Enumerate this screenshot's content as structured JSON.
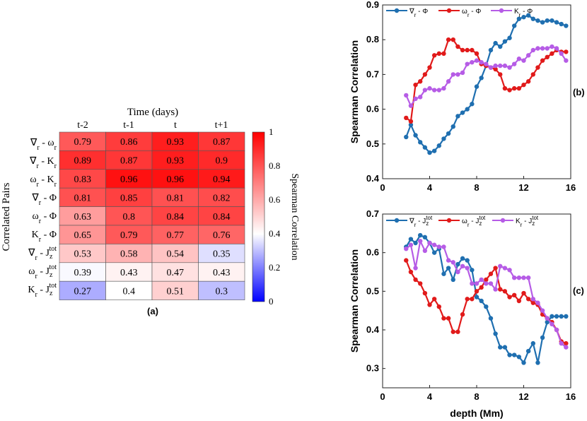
{
  "chart_data": [
    {
      "type": "heatmap",
      "title": "Time (days)",
      "panel_label": "(a)",
      "xlabel": "Time (days)",
      "ylabel": "Correlated Pairs",
      "columns": [
        "t-2",
        "t-1",
        "t",
        "t+1"
      ],
      "rows": [
        {
          "label": "∇r - ωr",
          "values": [
            0.79,
            0.86,
            0.93,
            0.87
          ]
        },
        {
          "label": "∇r - Kr",
          "values": [
            0.89,
            0.87,
            0.93,
            0.9
          ]
        },
        {
          "label": "ωr - Kr",
          "values": [
            0.83,
            0.96,
            0.96,
            0.94
          ]
        },
        {
          "label": "∇r - Φ",
          "values": [
            0.81,
            0.85,
            0.81,
            0.82
          ]
        },
        {
          "label": "ωr - Φ",
          "values": [
            0.63,
            0.8,
            0.84,
            0.84
          ]
        },
        {
          "label": "Kr - Φ",
          "values": [
            0.65,
            0.79,
            0.77,
            0.76
          ]
        },
        {
          "label": "∇r - Jz tot",
          "values": [
            0.53,
            0.58,
            0.54,
            0.35
          ]
        },
        {
          "label": "ωr - Jz tot",
          "values": [
            0.39,
            0.43,
            0.47,
            0.43
          ]
        },
        {
          "label": "Kr - Jz tot",
          "values": [
            0.27,
            0.4,
            0.51,
            0.3
          ]
        }
      ],
      "colorbar": {
        "label": "Spearman Correlation",
        "range": [
          0,
          1
        ],
        "ticks": [
          "0",
          "0.2",
          "0.4",
          "0.6",
          "0.8",
          "1"
        ]
      }
    },
    {
      "type": "line",
      "panel_label": "(b)",
      "ylabel": "Spearman Correlation",
      "xlabel": "",
      "xlim": [
        0,
        16
      ],
      "ylim": [
        0.4,
        0.9
      ],
      "xticks": [
        0,
        4,
        8,
        12,
        16
      ],
      "yticks": [
        0.4,
        0.5,
        0.6,
        0.7,
        0.8,
        0.9
      ],
      "legend": "top",
      "series": [
        {
          "name": "∇r - Φ",
          "color": "#1f6fb0",
          "x": [
            2.0,
            2.4,
            2.8,
            3.2,
            3.6,
            4.0,
            4.4,
            4.8,
            5.2,
            5.6,
            6.0,
            6.4,
            6.8,
            7.2,
            7.6,
            8.0,
            8.4,
            8.8,
            9.2,
            9.6,
            10.0,
            10.4,
            10.8,
            11.2,
            11.6,
            12.0,
            12.4,
            12.8,
            13.2,
            13.6,
            14.0,
            14.4,
            14.8,
            15.2,
            15.6
          ],
          "y": [
            0.52,
            0.555,
            0.525,
            0.505,
            0.49,
            0.475,
            0.48,
            0.495,
            0.515,
            0.53,
            0.55,
            0.58,
            0.59,
            0.6,
            0.615,
            0.665,
            0.69,
            0.725,
            0.77,
            0.79,
            0.78,
            0.795,
            0.805,
            0.84,
            0.86,
            0.865,
            0.87,
            0.86,
            0.855,
            0.85,
            0.855,
            0.855,
            0.85,
            0.845,
            0.84
          ]
        },
        {
          "name": "ωr - Φ",
          "color": "#e11a1a",
          "x": [
            2.0,
            2.4,
            2.8,
            3.2,
            3.6,
            4.0,
            4.4,
            4.8,
            5.2,
            5.6,
            6.0,
            6.4,
            6.8,
            7.2,
            7.6,
            8.0,
            8.4,
            8.8,
            9.2,
            9.6,
            10.0,
            10.4,
            10.8,
            11.2,
            11.6,
            12.0,
            12.4,
            12.8,
            13.2,
            13.6,
            14.0,
            14.4,
            14.8,
            15.2,
            15.6
          ],
          "y": [
            0.575,
            0.565,
            0.67,
            0.68,
            0.7,
            0.72,
            0.755,
            0.76,
            0.76,
            0.8,
            0.8,
            0.78,
            0.77,
            0.77,
            0.77,
            0.76,
            0.73,
            0.725,
            0.72,
            0.715,
            0.7,
            0.66,
            0.655,
            0.66,
            0.66,
            0.67,
            0.68,
            0.7,
            0.72,
            0.74,
            0.75,
            0.76,
            0.77,
            0.765,
            0.765
          ]
        },
        {
          "name": "Kr - Φ",
          "color": "#b65ce6",
          "x": [
            2.0,
            2.4,
            2.8,
            3.2,
            3.6,
            4.0,
            4.4,
            4.8,
            5.2,
            5.6,
            6.0,
            6.4,
            6.8,
            7.2,
            7.6,
            8.0,
            8.4,
            8.8,
            9.2,
            9.6,
            10.0,
            10.4,
            10.8,
            11.2,
            11.6,
            12.0,
            12.4,
            12.8,
            13.2,
            13.6,
            14.0,
            14.4,
            14.8,
            15.2,
            15.6
          ],
          "y": [
            0.64,
            0.61,
            0.63,
            0.635,
            0.655,
            0.66,
            0.655,
            0.655,
            0.66,
            0.68,
            0.7,
            0.7,
            0.705,
            0.73,
            0.735,
            0.74,
            0.735,
            0.73,
            0.72,
            0.725,
            0.725,
            0.725,
            0.72,
            0.73,
            0.745,
            0.74,
            0.755,
            0.77,
            0.775,
            0.775,
            0.775,
            0.78,
            0.775,
            0.76,
            0.74
          ]
        }
      ]
    },
    {
      "type": "line",
      "panel_label": "(c)",
      "ylabel": "Spearman Correlation",
      "xlabel": "depth (Mm)",
      "xlim": [
        0,
        16
      ],
      "ylim": [
        0.25,
        0.7
      ],
      "xticks": [
        0,
        4,
        8,
        12,
        16
      ],
      "yticks": [
        0.3,
        0.4,
        0.5,
        0.6,
        0.7
      ],
      "legend": "top",
      "series": [
        {
          "name": "∇r - Jz tot",
          "color": "#1f6fb0",
          "x": [
            2.0,
            2.4,
            2.8,
            3.2,
            3.6,
            4.0,
            4.4,
            4.8,
            5.2,
            5.6,
            6.0,
            6.4,
            6.8,
            7.2,
            7.6,
            8.0,
            8.4,
            8.8,
            9.2,
            9.6,
            10.0,
            10.4,
            10.8,
            11.2,
            11.6,
            12.0,
            12.4,
            12.8,
            13.2,
            13.6,
            14.0,
            14.4,
            14.8,
            15.2,
            15.6
          ],
          "y": [
            0.615,
            0.635,
            0.625,
            0.645,
            0.64,
            0.625,
            0.6,
            0.61,
            0.545,
            0.56,
            0.53,
            0.57,
            0.585,
            0.58,
            0.555,
            0.485,
            0.475,
            0.46,
            0.43,
            0.39,
            0.355,
            0.355,
            0.335,
            0.335,
            0.33,
            0.315,
            0.345,
            0.365,
            0.315,
            0.38,
            0.42,
            0.435,
            0.435,
            0.435,
            0.435
          ]
        },
        {
          "name": "ωr - Jz tot",
          "color": "#e11a1a",
          "x": [
            2.0,
            2.4,
            2.8,
            3.2,
            3.6,
            4.0,
            4.4,
            4.8,
            5.2,
            5.6,
            6.0,
            6.4,
            6.8,
            7.2,
            7.6,
            8.0,
            8.4,
            8.8,
            9.2,
            9.6,
            10.0,
            10.4,
            10.8,
            11.2,
            11.6,
            12.0,
            12.4,
            12.8,
            13.2,
            13.6,
            14.0,
            14.4,
            14.8,
            15.2,
            15.6
          ],
          "y": [
            0.58,
            0.55,
            0.53,
            0.52,
            0.495,
            0.465,
            0.48,
            0.46,
            0.43,
            0.43,
            0.395,
            0.395,
            0.44,
            0.48,
            0.48,
            0.5,
            0.51,
            0.53,
            0.545,
            0.56,
            0.505,
            0.5,
            0.485,
            0.49,
            0.475,
            0.495,
            0.48,
            0.47,
            0.465,
            0.44,
            0.43,
            0.42,
            0.4,
            0.37,
            0.365
          ]
        },
        {
          "name": "Kr - Jz tot",
          "color": "#b65ce6",
          "x": [
            2.0,
            2.4,
            2.8,
            3.2,
            3.6,
            4.0,
            4.4,
            4.8,
            5.2,
            5.6,
            6.0,
            6.4,
            6.8,
            7.2,
            7.6,
            8.0,
            8.4,
            8.8,
            9.2,
            9.6,
            10.0,
            10.4,
            10.8,
            11.2,
            11.6,
            12.0,
            12.4,
            12.8,
            13.2,
            13.6,
            14.0,
            14.4,
            14.8,
            15.2,
            15.6
          ],
          "y": [
            0.61,
            0.62,
            0.56,
            0.63,
            0.605,
            0.625,
            0.62,
            0.615,
            0.615,
            0.58,
            0.575,
            0.55,
            0.565,
            0.56,
            0.52,
            0.52,
            0.53,
            0.52,
            0.52,
            0.505,
            0.565,
            0.56,
            0.555,
            0.535,
            0.535,
            0.535,
            0.535,
            0.48,
            0.47,
            0.45,
            0.43,
            0.415,
            0.4,
            0.365,
            0.355
          ]
        }
      ]
    }
  ]
}
